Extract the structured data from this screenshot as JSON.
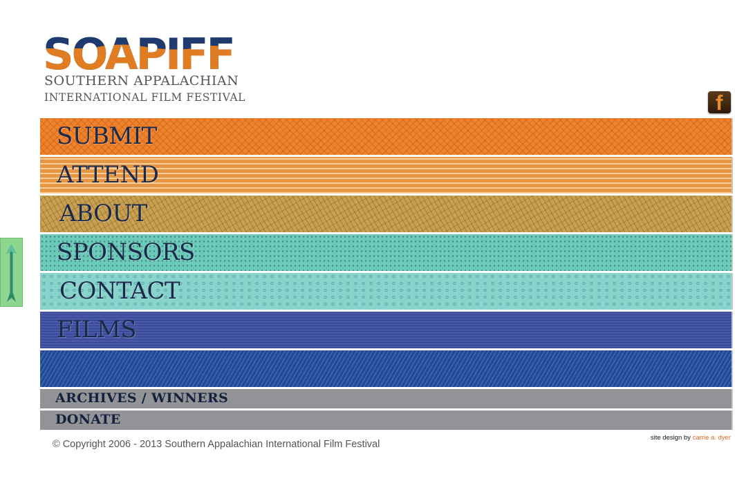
{
  "logo": {
    "wordmark": "SOAPIFF",
    "subtitle_line1": "SOUTHERN APPALACHIAN",
    "subtitle_line2": "INTERNATIONAL FILM FESTIVAL",
    "colors": {
      "navy": "#1e3a6e",
      "orange": "#e07c22"
    }
  },
  "social": {
    "facebook_icon": "facebook-icon"
  },
  "side": {
    "icon": "arrow-up-icon",
    "color": "#8cd690"
  },
  "nav": {
    "items": [
      {
        "label": "SUBMIT",
        "color": "#f0822b"
      },
      {
        "label": "ATTEND",
        "color": "#e49645"
      },
      {
        "label": "ABOUT",
        "color": "#c8a050"
      },
      {
        "label": "SPONSORS",
        "color": "#6ccab8"
      },
      {
        "label": "CONTACT",
        "color": "#88d4cc"
      },
      {
        "label": "FILMS",
        "color": "#4858a8"
      },
      {
        "label": "",
        "color": "#224a96"
      }
    ],
    "secondary": [
      {
        "label": "ARCHIVES / WINNERS"
      },
      {
        "label": "DONATE"
      }
    ]
  },
  "footer": {
    "copyright": "© Copyright 2006 - 2013 Southern Appalachian International Film Festival",
    "credit_prefix": "site design by",
    "credit_name": "carrie a. dyer"
  }
}
